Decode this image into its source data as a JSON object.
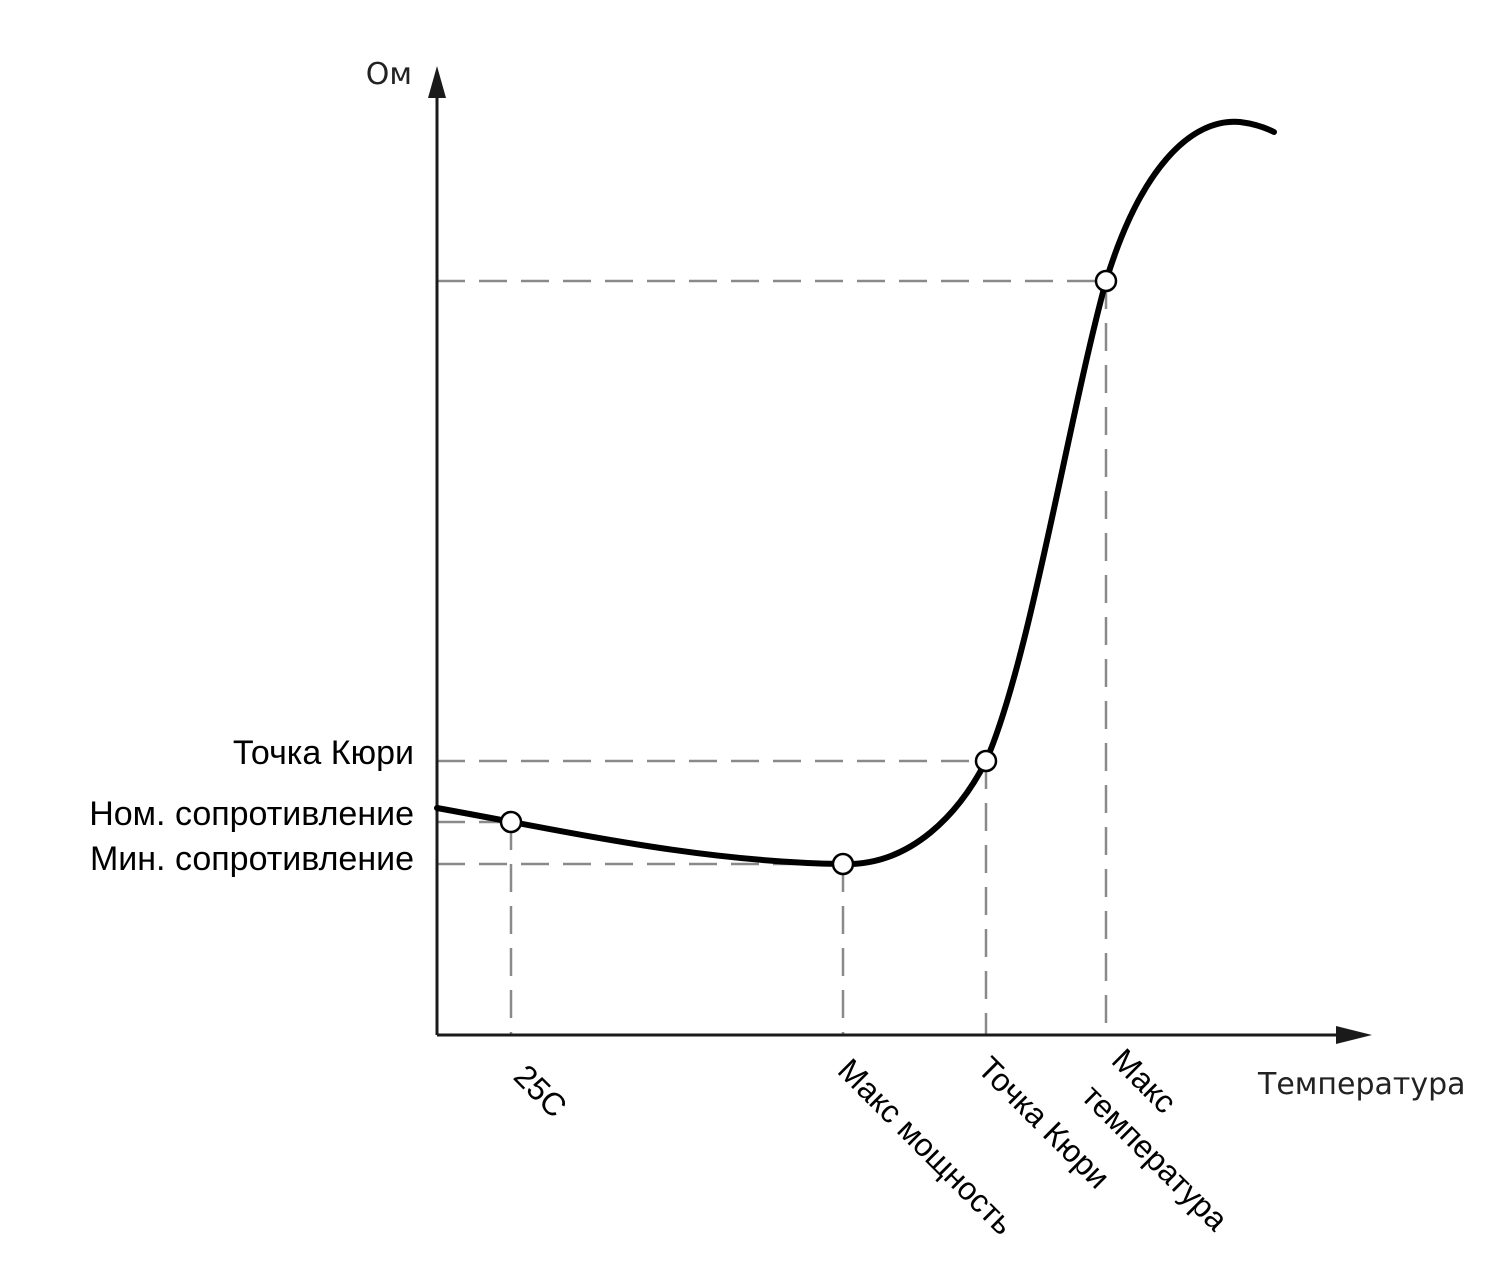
{
  "diagram": {
    "y_axis_label": "Ом",
    "x_axis_label": "Температура",
    "y_labels": {
      "curie": "Точка Кюри",
      "nominal": "Ном. сопротивление",
      "minimum": "Мин. сопротивление"
    },
    "x_labels": {
      "t25": "25C",
      "max_power": "Макс мощность",
      "curie": "Точка Кюри",
      "max_temp_line1": "Макс",
      "max_temp_line2": "температура"
    },
    "colors": {
      "curve": "#000000",
      "guide": "#8a8a8a",
      "axis": "#1a1a1a"
    }
  }
}
